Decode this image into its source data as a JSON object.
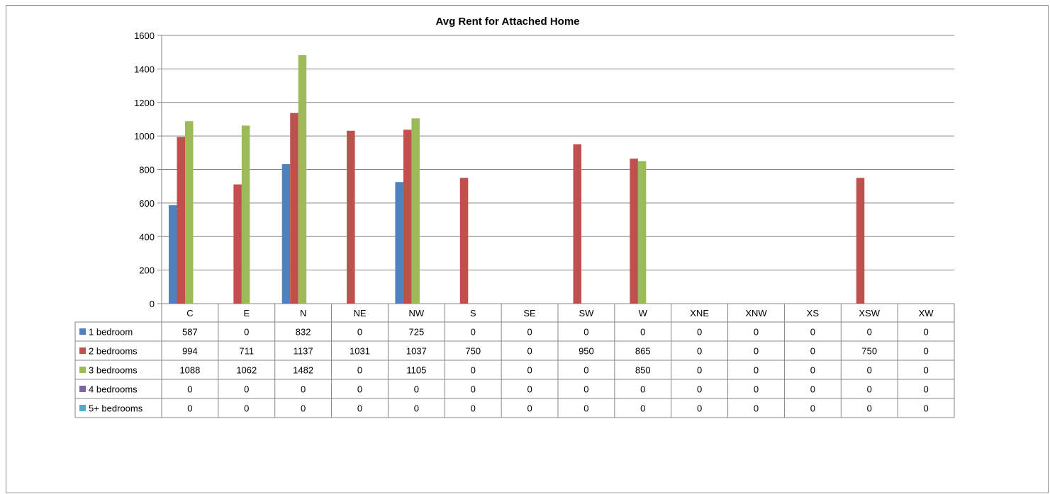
{
  "chart_data": {
    "type": "bar",
    "title": "Avg Rent for Attached Home",
    "xlabel": "",
    "ylabel": "",
    "ylim": [
      0,
      1600
    ],
    "yticks": [
      0,
      200,
      400,
      600,
      800,
      1000,
      1200,
      1400,
      1600
    ],
    "grid": true,
    "legend": "data-table",
    "categories": [
      "C",
      "E",
      "N",
      "NE",
      "NW",
      "S",
      "SE",
      "SW",
      "W",
      "XNE",
      "XNW",
      "XS",
      "XSW",
      "XW"
    ],
    "series": [
      {
        "name": "1 bedroom",
        "color": "#4f81bd",
        "values": [
          587,
          0,
          832,
          0,
          725,
          0,
          0,
          0,
          0,
          0,
          0,
          0,
          0,
          0
        ]
      },
      {
        "name": "2 bedrooms",
        "color": "#c0504d",
        "values": [
          994,
          711,
          1137,
          1031,
          1037,
          750,
          0,
          950,
          865,
          0,
          0,
          0,
          750,
          0
        ]
      },
      {
        "name": "3 bedrooms",
        "color": "#9bbb59",
        "values": [
          1088,
          1062,
          1482,
          0,
          1105,
          0,
          0,
          0,
          850,
          0,
          0,
          0,
          0,
          0
        ]
      },
      {
        "name": "4 bedrooms",
        "color": "#8064a2",
        "values": [
          0,
          0,
          0,
          0,
          0,
          0,
          0,
          0,
          0,
          0,
          0,
          0,
          0,
          0
        ]
      },
      {
        "name": "5+ bedrooms",
        "color": "#4bacc6",
        "values": [
          0,
          0,
          0,
          0,
          0,
          0,
          0,
          0,
          0,
          0,
          0,
          0,
          0,
          0
        ]
      }
    ]
  }
}
